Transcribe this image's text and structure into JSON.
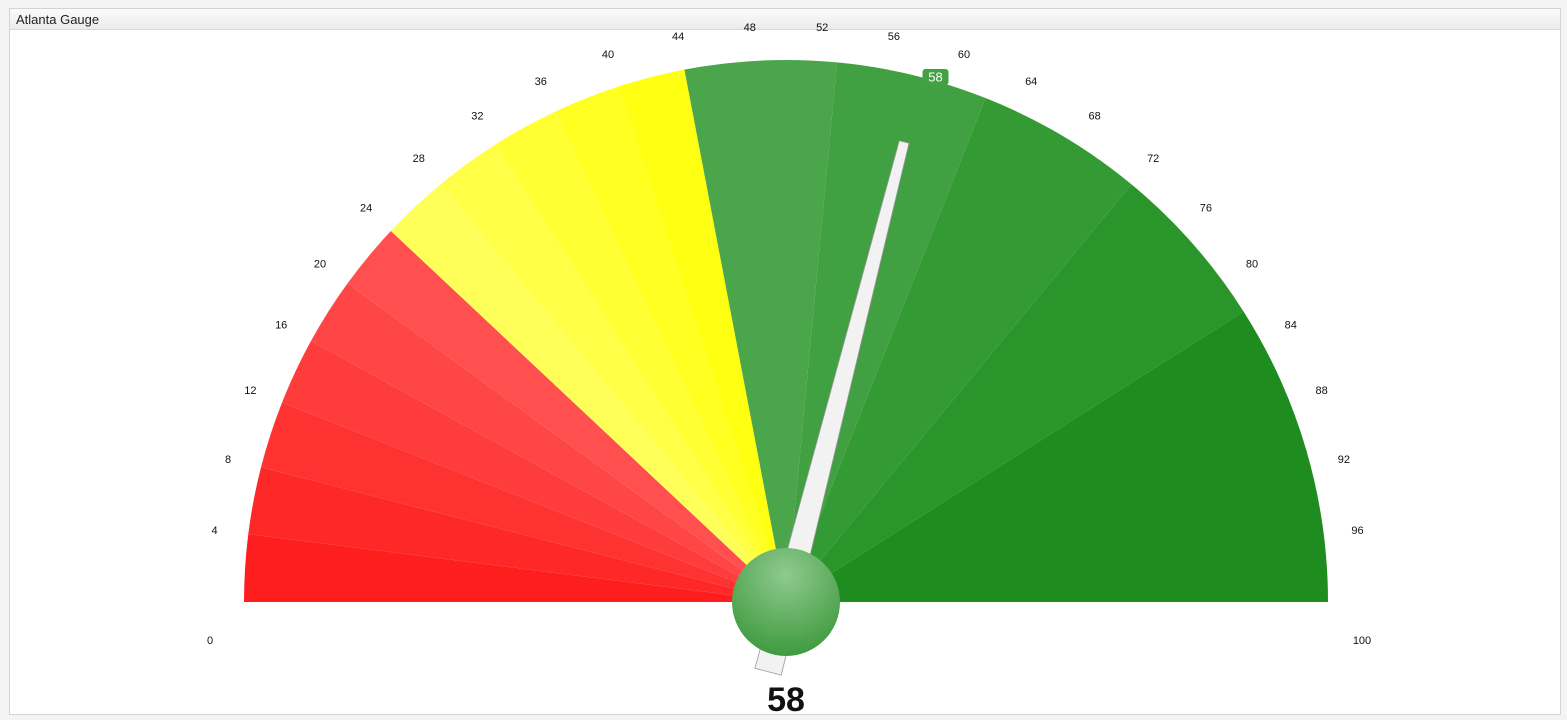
{
  "widget": {
    "title": "Atlanta Gauge"
  },
  "chart_data": {
    "type": "gauge",
    "value": 58,
    "min": 0,
    "max": 100,
    "value_label": "58",
    "needle_badge": "58",
    "ticks": [
      0,
      4,
      8,
      12,
      16,
      20,
      24,
      28,
      32,
      36,
      40,
      44,
      48,
      52,
      56,
      60,
      64,
      68,
      72,
      76,
      80,
      84,
      88,
      92,
      96,
      100
    ],
    "bands": [
      {
        "from": 0,
        "to": 4,
        "color": "#ff1e1e"
      },
      {
        "from": 4,
        "to": 8,
        "color": "#ff2828"
      },
      {
        "from": 8,
        "to": 12,
        "color": "#ff3232"
      },
      {
        "from": 12,
        "to": 16,
        "color": "#ff3c3c"
      },
      {
        "from": 16,
        "to": 20,
        "color": "#ff4646"
      },
      {
        "from": 20,
        "to": 24,
        "color": "#ff4f4f"
      },
      {
        "from": 24,
        "to": 28,
        "color": "#ffff5a"
      },
      {
        "from": 28,
        "to": 32,
        "color": "#ffff48"
      },
      {
        "from": 32,
        "to": 36,
        "color": "#ffff34"
      },
      {
        "from": 36,
        "to": 40,
        "color": "#ffff22"
      },
      {
        "from": 40,
        "to": 44,
        "color": "#ffff12"
      },
      {
        "from": 44,
        "to": 53,
        "color": "#4ba54b"
      },
      {
        "from": 53,
        "to": 62,
        "color": "#41a041"
      },
      {
        "from": 62,
        "to": 72,
        "color": "#349b34"
      },
      {
        "from": 72,
        "to": 82,
        "color": "#2a952a"
      },
      {
        "from": 82,
        "to": 100,
        "color": "#1e8c1e"
      }
    ],
    "needle_color": "#f2f2f2",
    "hub_color": "#5aa85a",
    "badge_color": "#43a043"
  }
}
